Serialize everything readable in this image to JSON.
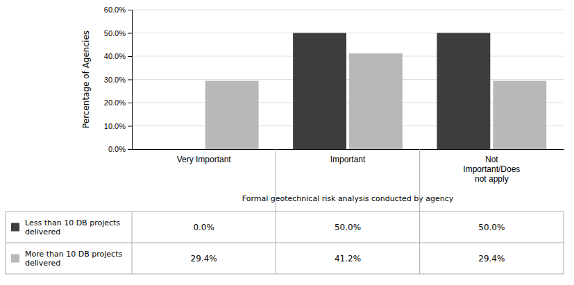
{
  "chart_data": {
    "type": "bar",
    "categories": [
      "Very Important",
      "Important",
      "Not\nImportant/Does\nnot apply"
    ],
    "series": [
      {
        "name": "Less than 10 DB projects\ndelivered",
        "color": "#3d3d3d",
        "values": [
          0.0,
          50.0,
          50.0
        ],
        "value_labels": [
          "0.0%",
          "50.0%",
          "50.0%"
        ]
      },
      {
        "name": "More than 10 DB projects\ndelivered",
        "color": "#b8b8b8",
        "values": [
          29.4,
          41.2,
          29.4
        ],
        "value_labels": [
          "29.4%",
          "41.2%",
          "29.4%"
        ]
      }
    ],
    "xlabel": "Formal geotechnical risk analysis conducted by agency",
    "ylabel": "Percentage of Agencies",
    "ylim": [
      0,
      60
    ],
    "yticks": [
      {
        "value": 0,
        "label": "0.0%"
      },
      {
        "value": 10,
        "label": "10.0%"
      },
      {
        "value": 20,
        "label": "20.0%"
      },
      {
        "value": 30,
        "label": "30.0%"
      },
      {
        "value": 40,
        "label": "40.0%"
      },
      {
        "value": 50,
        "label": "50.0%"
      },
      {
        "value": 60,
        "label": "60.0%"
      }
    ],
    "grid": true
  }
}
